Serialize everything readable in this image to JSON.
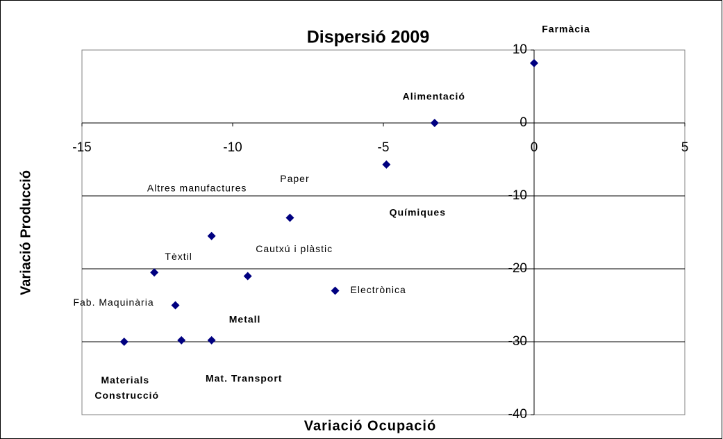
{
  "chart_data": {
    "type": "scatter",
    "title": "Dispersió 2009",
    "xlabel": "Variació Ocupació",
    "ylabel": "Variació Producció",
    "labels": [
      "Farmàcia",
      "Alimentació",
      "Químiques",
      "Paper",
      "Altres manufactures",
      "Tèxtil",
      "Cautxú i plàstic",
      "Electrònica",
      "Fab. Maquinària",
      "Materials Construcció",
      "Mat. Transport",
      "Metall"
    ],
    "x": [
      0,
      -3.3,
      -4.9,
      -8.1,
      -10.7,
      -12.6,
      -9.5,
      -6.6,
      -11.9,
      -13.6,
      -11.7,
      -10.7
    ],
    "values": [
      8.2,
      0,
      -5.7,
      -13,
      -15.5,
      -20.5,
      -21,
      -23,
      -25,
      -30,
      -29.8,
      -29.8
    ],
    "color": "#000080",
    "xlim": [
      -15,
      5
    ],
    "ylim": [
      -40,
      10
    ],
    "xticks": [
      -15,
      -10,
      -5,
      0,
      5
    ],
    "yticks": [
      -40,
      -30,
      -20,
      -10,
      0,
      10
    ],
    "grid": true
  }
}
